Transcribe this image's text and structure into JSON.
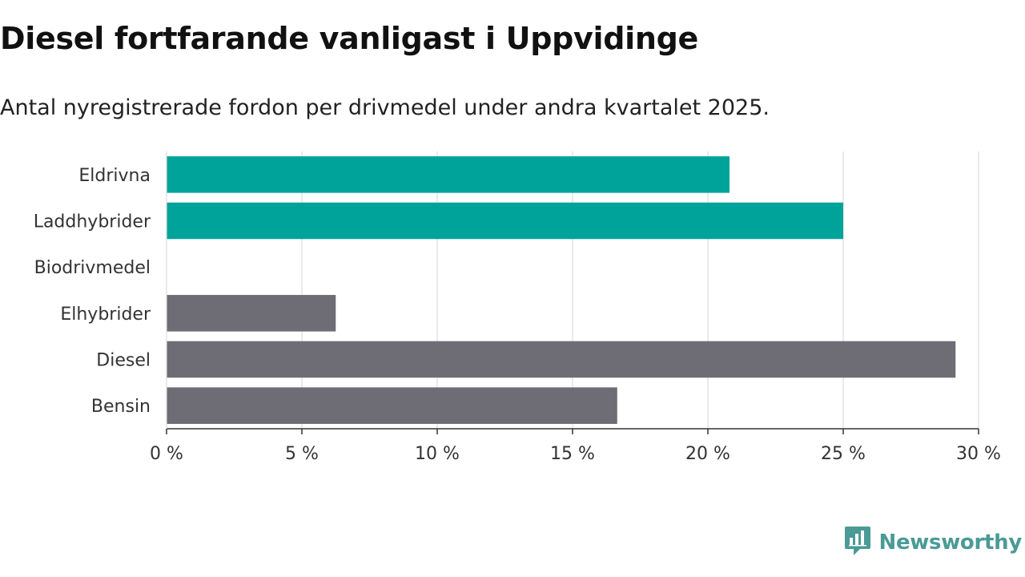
{
  "title": "Diesel fortfarande vanligast i Uppvidinge",
  "subtitle": "Antal nyregistrerade fordon per drivmedel under andra kvartalet 2025.",
  "brand": {
    "name": "Newsworthy",
    "icon": "newsworthy-logo-icon",
    "color": "#4a9a96"
  },
  "colors": {
    "highlight": "#00a39a",
    "default": "#6e6c75",
    "grid": "#dddddd",
    "axis": "#333333"
  },
  "chart_data": {
    "type": "bar",
    "orientation": "horizontal",
    "categories": [
      "Eldrivna",
      "Laddhybrider",
      "Biodrivmedel",
      "Elhybrider",
      "Diesel",
      "Bensin"
    ],
    "values": [
      20.8,
      25.0,
      0,
      6.25,
      29.15,
      16.65
    ],
    "highlighted": [
      true,
      true,
      true,
      false,
      false,
      false
    ],
    "xlim": [
      0,
      30
    ],
    "xticks": [
      0,
      5,
      10,
      15,
      20,
      25,
      30
    ],
    "xtick_labels": [
      "0 %",
      "5 %",
      "10 %",
      "15 %",
      "20 %",
      "25 %",
      "30 %"
    ],
    "grid": true,
    "unit": "%"
  }
}
